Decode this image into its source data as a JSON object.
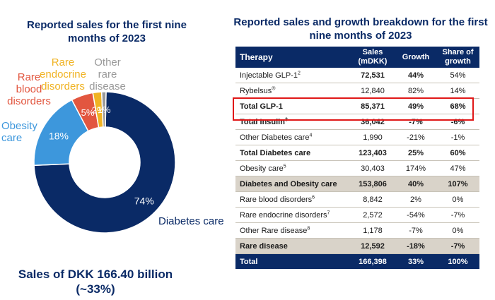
{
  "left_title": "Reported sales for the first nine months of 2023",
  "bottom_title": "Sales of DKK 166.40 billion (~33%)",
  "right_title": "Reported sales and growth breakdown for the first nine months of 2023",
  "chart_data": {
    "type": "pie",
    "title": "Reported sales for the first nine months of 2023",
    "slices": [
      {
        "label": "Diabetes care",
        "value": 74,
        "value_label": "74%",
        "color": "#0a2a66"
      },
      {
        "label": "Obesity care",
        "value": 18,
        "value_label": "18%",
        "color": "#3d97dc"
      },
      {
        "label": "Rare blood disorders",
        "value": 5,
        "value_label": "5%",
        "color": "#e2563f"
      },
      {
        "label": "Rare endocrine disorders",
        "value": 2,
        "value_label": "2%",
        "color": "#f0b323"
      },
      {
        "label": "Other rare disease",
        "value": 1,
        "value_label": "1%",
        "color": "#9a9a9a"
      }
    ],
    "external_labels": {
      "diabetes": "Diabetes care",
      "obesity": [
        "Obesity",
        "care"
      ],
      "rare_blood": [
        "Rare",
        "blood",
        "disorders"
      ],
      "rare_endocrine": [
        "Rare",
        "endocrine",
        "disorders"
      ],
      "other_rare": [
        "Other",
        "rare",
        "disease"
      ]
    }
  },
  "table": {
    "headers": {
      "therapy": "Therapy",
      "sales": [
        "Sales",
        "(mDKK)"
      ],
      "growth": "Growth",
      "share": [
        "Share of",
        "growth"
      ]
    },
    "rows": [
      {
        "name": "Injectable GLP-1",
        "note": "2",
        "sales": "72,531",
        "growth": "44%",
        "share": "54%"
      },
      {
        "name": "Rybelsus",
        "note": "®",
        "sales": "12,840",
        "growth": "82%",
        "share": "14%"
      },
      {
        "name": "Total GLP-1",
        "note": "",
        "sales": "85,371",
        "growth": "49%",
        "share": "68%"
      },
      {
        "name": "Total Insulin",
        "note": "3",
        "sales": "36,042",
        "growth": "-7%",
        "share": "-6%"
      },
      {
        "name": "Other Diabetes care",
        "note": "4",
        "sales": "1,990",
        "growth": "-21%",
        "share": "-1%"
      },
      {
        "name": "Total Diabetes care",
        "note": "",
        "sales": "123,403",
        "growth": "25%",
        "share": "60%"
      },
      {
        "name": "Obesity care",
        "note": "5",
        "sales": "30,403",
        "growth": "174%",
        "share": "47%"
      },
      {
        "name": "Diabetes and Obesity care",
        "note": "",
        "sales": "153,806",
        "growth": "40%",
        "share": "107%"
      },
      {
        "name": "Rare blood disorders",
        "note": "6",
        "sales": "8,842",
        "growth": "2%",
        "share": "0%"
      },
      {
        "name": "Rare endocrine disorders",
        "note": "7",
        "sales": "2,572",
        "growth": "-54%",
        "share": "-7%"
      },
      {
        "name": "Other Rare disease",
        "note": "8",
        "sales": "1,178",
        "growth": "-7%",
        "share": "0%"
      },
      {
        "name": "Rare disease",
        "note": "",
        "sales": "12,592",
        "growth": "-18%",
        "share": "-7%"
      },
      {
        "name": "Total",
        "note": "",
        "sales": "166,398",
        "growth": "33%",
        "share": "100%"
      }
    ]
  }
}
